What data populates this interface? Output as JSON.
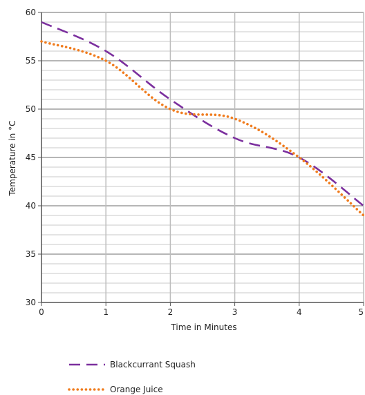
{
  "chart_data": {
    "type": "line",
    "title": "",
    "xlabel": "Time in Minutes",
    "ylabel": "Temperature in °C",
    "xlim": [
      0,
      5
    ],
    "ylim": [
      30,
      60
    ],
    "x_ticks": [
      0,
      1,
      2,
      3,
      4,
      5
    ],
    "y_ticks": [
      30,
      35,
      40,
      45,
      50,
      55,
      60
    ],
    "x_ticks_text": [
      "0",
      "1",
      "2",
      "3",
      "4",
      "5"
    ],
    "y_ticks_text": [
      "30",
      "35",
      "40",
      "45",
      "50",
      "55",
      "60"
    ],
    "grid": true,
    "legend_position": "bottom-left",
    "series": [
      {
        "name": "Blackcurrant Squash",
        "color": "#7b2f9e",
        "style": "dashed",
        "x": [
          0,
          1,
          2,
          3,
          4,
          5
        ],
        "y": [
          59,
          56,
          51,
          47,
          45,
          40
        ]
      },
      {
        "name": "Orange Juice",
        "color": "#f07c1e",
        "style": "dotted",
        "x": [
          0,
          1,
          2,
          3,
          4,
          5
        ],
        "y": [
          57,
          55,
          50,
          49,
          45,
          39
        ]
      }
    ]
  }
}
